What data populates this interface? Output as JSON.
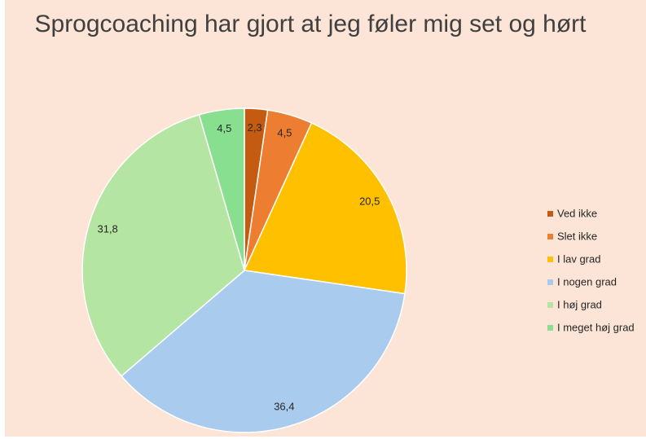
{
  "chart_data": {
    "type": "pie",
    "title": "Sprogcoaching har gjort at jeg føler mig set og hørt",
    "categories": [
      "Ved ikke",
      "Slet ikke",
      "I lav grad",
      "I nogen grad",
      "I høj grad",
      "I meget høj grad"
    ],
    "values": [
      2.3,
      4.5,
      20.5,
      36.4,
      31.8,
      4.5
    ],
    "value_labels": [
      "2,3",
      "4,5",
      "20,5",
      "36,4",
      "31,8",
      "4,5"
    ],
    "colors": [
      "#c55a11",
      "#ed7d31",
      "#ffc000",
      "#a9cbee",
      "#b5e5a2",
      "#88df8f"
    ],
    "legend": "right"
  }
}
